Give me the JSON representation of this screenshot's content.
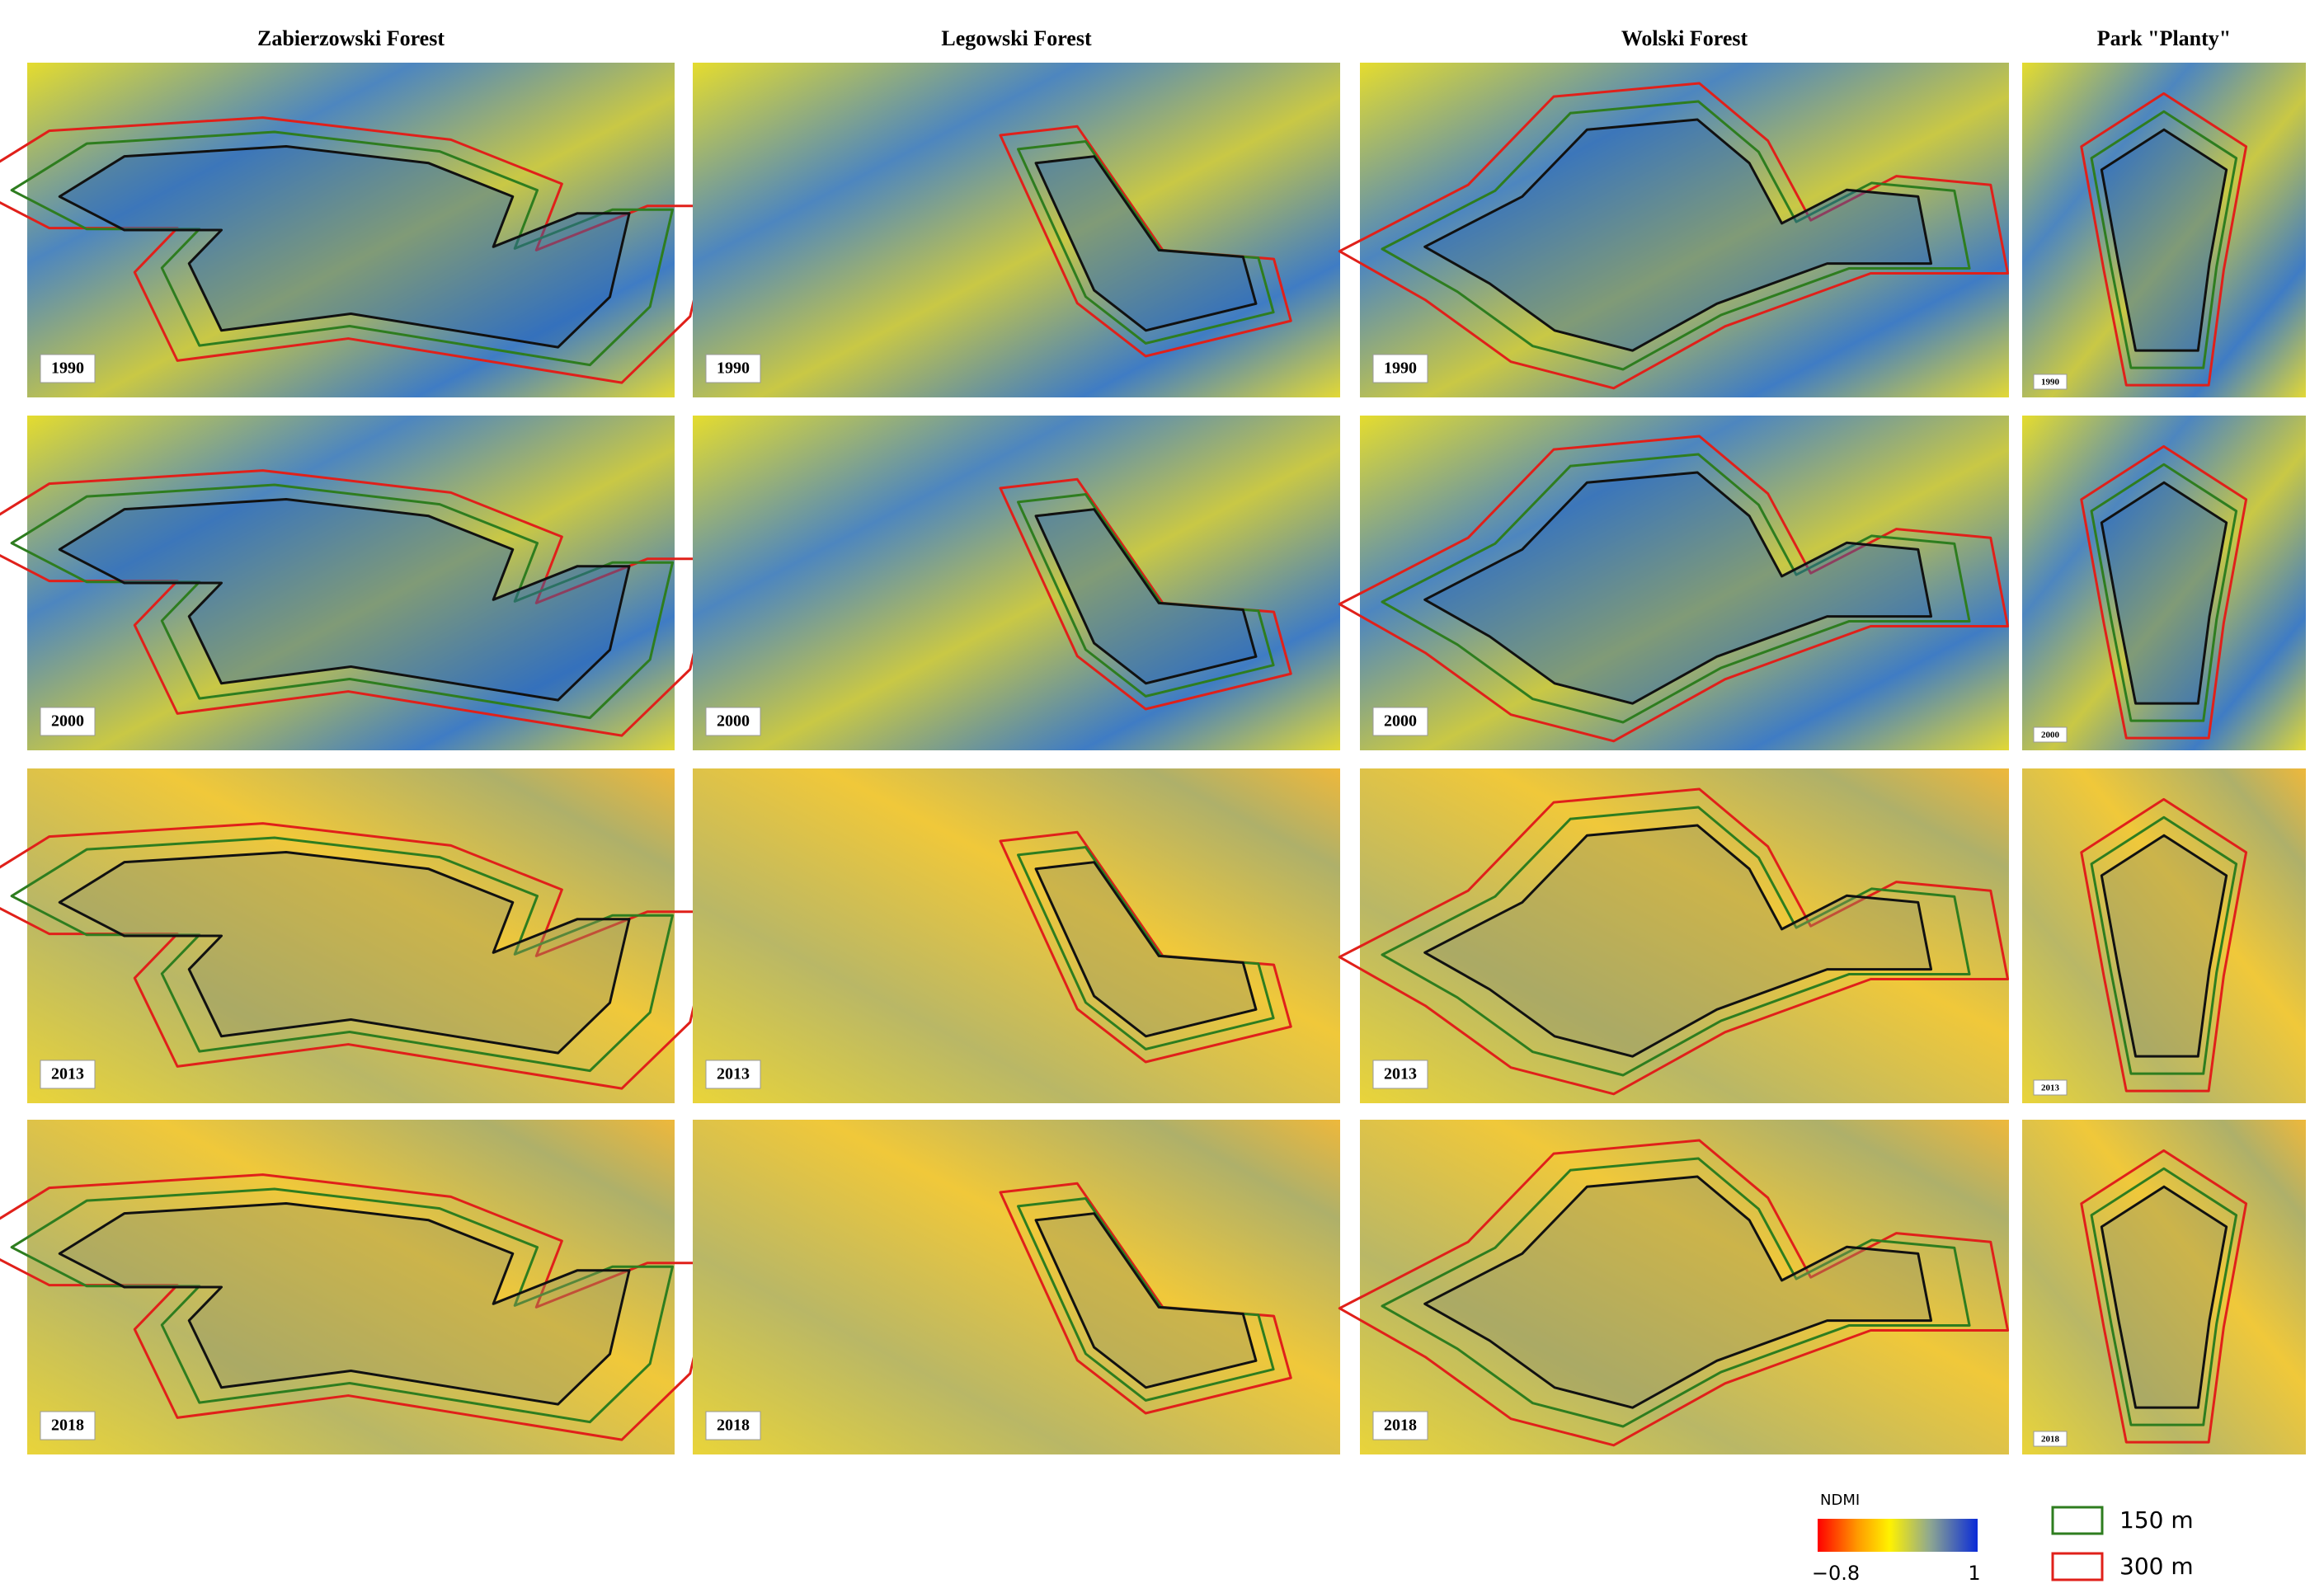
{
  "columns": [
    {
      "title": "Zabierzowski Forest",
      "years": [
        "1990",
        "2000",
        "2013",
        "2018"
      ]
    },
    {
      "title": "Legowski Forest",
      "years": [
        "1990",
        "2000",
        "2013",
        "2018"
      ]
    },
    {
      "title": "Wolski Forest",
      "years": [
        "1990",
        "2000",
        "2013",
        "2018"
      ]
    },
    {
      "title": "Park \"Planty\"",
      "years": [
        "1990",
        "2000",
        "2013",
        "2018"
      ]
    }
  ],
  "legend": {
    "title": "NDMI",
    "min_label": "−0.8",
    "max_label": "1",
    "buffers": [
      "150 m",
      "300 m"
    ]
  }
}
